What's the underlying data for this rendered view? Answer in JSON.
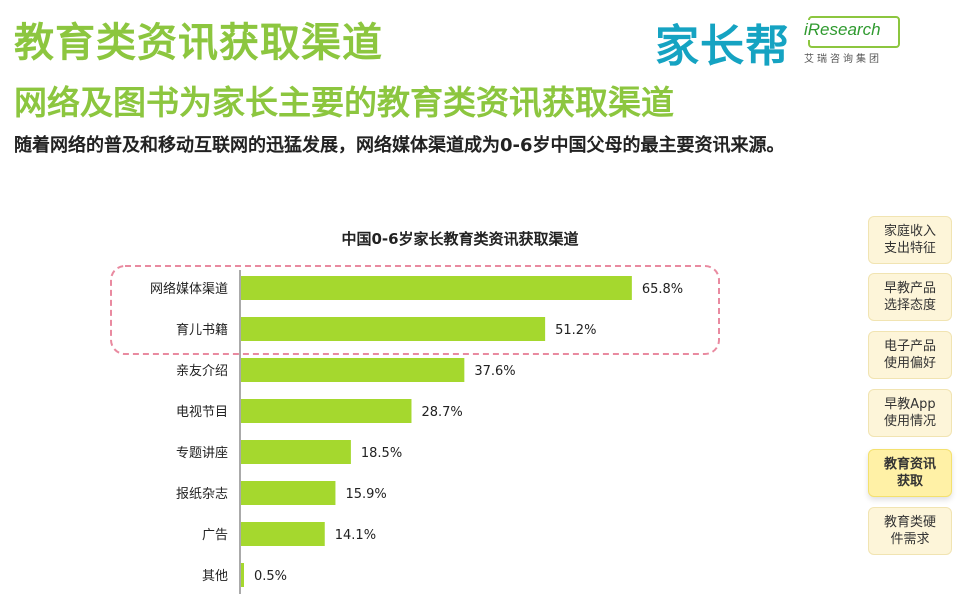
{
  "header": {
    "title": "教育类资讯获取渠道",
    "subtitle": "网络及图书为家长主要的教育类资讯获取渠道",
    "description": "随着网络的普及和移动互联网的迅猛发展，网络媒体渠道成为0-6岁中国父母的最主要资讯来源。"
  },
  "logos": {
    "jiazhangbang": "家长帮",
    "iresearch": "iResearch",
    "iresearch_cn": "艾瑞咨询集团"
  },
  "chart_data": {
    "type": "bar",
    "orientation": "horizontal",
    "title": "中国0-6岁家长教育类资讯获取渠道",
    "categories": [
      "网络媒体渠道",
      "育儿书籍",
      "亲友介绍",
      "电视节目",
      "专题讲座",
      "报纸杂志",
      "广告",
      "其他"
    ],
    "values": [
      65.8,
      51.2,
      37.6,
      28.7,
      18.5,
      15.9,
      14.1,
      0.5
    ],
    "value_labels": [
      "65.8%",
      "51.2%",
      "37.6%",
      "28.7%",
      "18.5%",
      "15.9%",
      "14.1%",
      "0.5%"
    ],
    "unit": "%",
    "xlim": [
      0,
      70
    ],
    "grid": false,
    "bar_color": "#a5d82e",
    "highlight": {
      "categories": [
        "网络媒体渠道",
        "育儿书籍"
      ],
      "style": "dashed-rounded-box",
      "color": "#e98aa0"
    }
  },
  "side_nav": {
    "items": [
      {
        "label": "家庭收入\n支出特征",
        "active": false
      },
      {
        "label": "早教产品\n选择态度",
        "active": false
      },
      {
        "label": "电子产品\n使用偏好",
        "active": false
      },
      {
        "label": "早教App\n使用情况",
        "active": false
      },
      {
        "label": "教育资讯\n获取",
        "active": true
      },
      {
        "label": "教育类硬\n件需求",
        "active": false
      }
    ]
  },
  "colors": {
    "accent_green": "#8cc63f",
    "bar_green": "#a5d82e",
    "logo_blue": "#15a3c2",
    "tab_bg": "#fdf5d9",
    "tab_active_bg": "#fff1a6",
    "highlight_pink": "#e98aa0"
  }
}
